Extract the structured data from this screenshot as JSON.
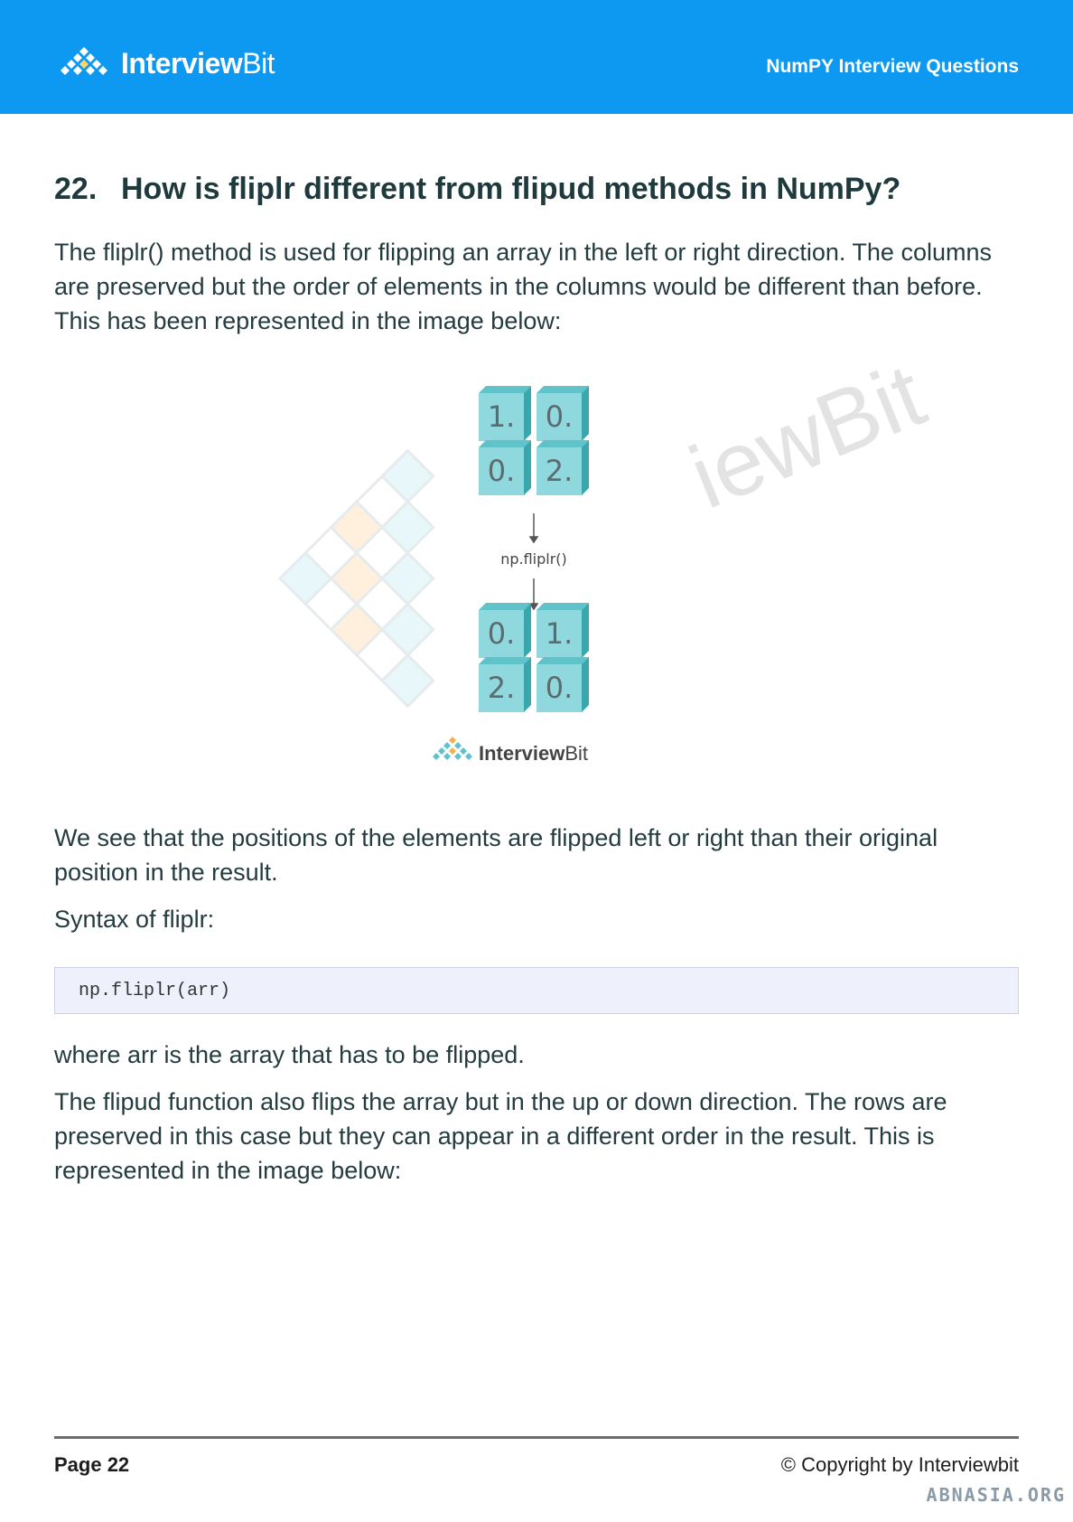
{
  "header": {
    "logo_text_bold": "Interview",
    "logo_text_light": "Bit",
    "doc_title": "NumPY Interview Questions"
  },
  "question": {
    "number": "22.",
    "title": "How is fliplr different from flipud methods in NumPy?"
  },
  "paragraphs": {
    "p1": "The fliplr() method is used for flipping an array in the left or right direction. The columns are preserved but the order of elements in the columns would be different than before. This has been represented in the image below:",
    "p2": "We see that the positions of the elements are flipped left or right than their original position in the result.",
    "p3": "Syntax of fliplr:",
    "p4": "where arr is the array that has to be flipped.",
    "p5": "The flipud function also flips the array but in the up or down direction. The rows are preserved in this case but they can appear in a different order in the result. This is represented in the image below:"
  },
  "code": "np.fliplr(arr)",
  "figure": {
    "top_cells": [
      "1.",
      "0.",
      "0.",
      "2."
    ],
    "bottom_cells": [
      "0.",
      "1.",
      "2.",
      "0."
    ],
    "operation_label": "np.fliplr()",
    "logo_text_bold": "Interview",
    "logo_text_light": "Bit",
    "watermark_text": "iewBit",
    "cell_color": "#7fd3d8"
  },
  "footer": {
    "page_label": "Page 22",
    "copyright": "© Copyright by Interviewbit",
    "site_watermark": "ABNASIA.ORG"
  },
  "colors": {
    "header_bg": "#0d99f2",
    "text": "#243b3f",
    "code_bg": "#eef1fb"
  }
}
